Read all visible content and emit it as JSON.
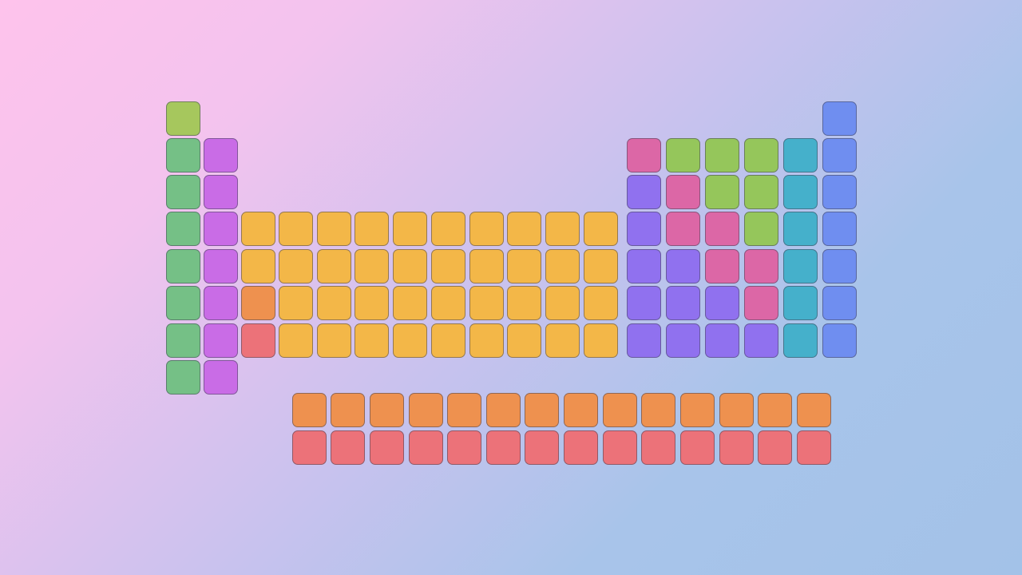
{
  "colors": {
    "hydrogen": "#a6c75d",
    "alkali-metal": "#75c086",
    "alkaline-earth-metal": "#c96ce6",
    "transition-metal": "#f3b748",
    "lanthanide": "#ee914f",
    "actinide": "#ec7279",
    "metalloid": "#dc67a6",
    "reactive-nonmetal": "#95c65b",
    "post-transition-metal": "#9071ef",
    "halogen": "#45b0cb",
    "noble-gas": "#6f8ef0"
  },
  "main_grid": [
    [
      "hydrogen",
      null,
      null,
      null,
      null,
      null,
      null,
      null,
      null,
      null,
      null,
      null,
      null,
      null,
      null,
      null,
      null,
      "noble-gas"
    ],
    [
      "alkali-metal",
      "alkaline-earth-metal",
      null,
      null,
      null,
      null,
      null,
      null,
      null,
      null,
      null,
      null,
      "metalloid",
      "reactive-nonmetal",
      "reactive-nonmetal",
      "reactive-nonmetal",
      "halogen",
      "noble-gas"
    ],
    [
      "alkali-metal",
      "alkaline-earth-metal",
      null,
      null,
      null,
      null,
      null,
      null,
      null,
      null,
      null,
      null,
      "post-transition-metal",
      "metalloid",
      "reactive-nonmetal",
      "reactive-nonmetal",
      "halogen",
      "noble-gas"
    ],
    [
      "alkali-metal",
      "alkaline-earth-metal",
      "transition-metal",
      "transition-metal",
      "transition-metal",
      "transition-metal",
      "transition-metal",
      "transition-metal",
      "transition-metal",
      "transition-metal",
      "transition-metal",
      "transition-metal",
      "post-transition-metal",
      "metalloid",
      "metalloid",
      "reactive-nonmetal",
      "halogen",
      "noble-gas"
    ],
    [
      "alkali-metal",
      "alkaline-earth-metal",
      "transition-metal",
      "transition-metal",
      "transition-metal",
      "transition-metal",
      "transition-metal",
      "transition-metal",
      "transition-metal",
      "transition-metal",
      "transition-metal",
      "transition-metal",
      "post-transition-metal",
      "post-transition-metal",
      "metalloid",
      "metalloid",
      "halogen",
      "noble-gas"
    ],
    [
      "alkali-metal",
      "alkaline-earth-metal",
      "lanthanide",
      "transition-metal",
      "transition-metal",
      "transition-metal",
      "transition-metal",
      "transition-metal",
      "transition-metal",
      "transition-metal",
      "transition-metal",
      "transition-metal",
      "post-transition-metal",
      "post-transition-metal",
      "post-transition-metal",
      "metalloid",
      "halogen",
      "noble-gas"
    ],
    [
      "alkali-metal",
      "alkaline-earth-metal",
      "actinide",
      "transition-metal",
      "transition-metal",
      "transition-metal",
      "transition-metal",
      "transition-metal",
      "transition-metal",
      "transition-metal",
      "transition-metal",
      "transition-metal",
      "post-transition-metal",
      "post-transition-metal",
      "post-transition-metal",
      "post-transition-metal",
      "halogen",
      "noble-gas"
    ],
    [
      "alkali-metal",
      "alkaline-earth-metal",
      null,
      null,
      null,
      null,
      null,
      null,
      null,
      null,
      null,
      null,
      null,
      null,
      null,
      null,
      null,
      null
    ]
  ],
  "f_block": [
    [
      "lanthanide",
      "lanthanide",
      "lanthanide",
      "lanthanide",
      "lanthanide",
      "lanthanide",
      "lanthanide",
      "lanthanide",
      "lanthanide",
      "lanthanide",
      "lanthanide",
      "lanthanide",
      "lanthanide",
      "lanthanide"
    ],
    [
      "actinide",
      "actinide",
      "actinide",
      "actinide",
      "actinide",
      "actinide",
      "actinide",
      "actinide",
      "actinide",
      "actinide",
      "actinide",
      "actinide",
      "actinide",
      "actinide"
    ]
  ]
}
